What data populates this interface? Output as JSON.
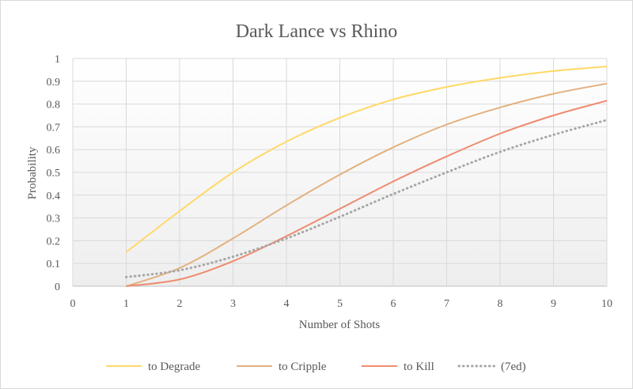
{
  "chart_data": {
    "type": "line",
    "title": "Dark Lance vs Rhino",
    "xlabel": "Number of Shots",
    "ylabel": "Probability",
    "xlim": [
      0,
      10
    ],
    "ylim": [
      0,
      1
    ],
    "x_ticks": [
      "0",
      "1",
      "2",
      "3",
      "4",
      "5",
      "6",
      "7",
      "8",
      "9",
      "10"
    ],
    "y_ticks": [
      "0",
      "0.1",
      "0.2",
      "0.3",
      "0.4",
      "0.5",
      "0.6",
      "0.7",
      "0.8",
      "0.9",
      "1"
    ],
    "grid": true,
    "legend_position": "bottom",
    "x": [
      1,
      2,
      3,
      4,
      5,
      6,
      7,
      8,
      9,
      10
    ],
    "series": [
      {
        "name": "to Degrade",
        "color": "#ffd966",
        "dash": "solid",
        "values": [
          0.15,
          0.33,
          0.5,
          0.635,
          0.74,
          0.82,
          0.875,
          0.915,
          0.945,
          0.965
        ]
      },
      {
        "name": "to Cripple",
        "color": "#e3b17e",
        "dash": "solid",
        "values": [
          0.0,
          0.08,
          0.21,
          0.355,
          0.49,
          0.61,
          0.71,
          0.785,
          0.845,
          0.89
        ]
      },
      {
        "name": "to Kill",
        "color": "#ee8b70",
        "dash": "solid",
        "values": [
          0.0,
          0.03,
          0.11,
          0.22,
          0.34,
          0.46,
          0.57,
          0.67,
          0.75,
          0.815
        ]
      },
      {
        "name": "(7ed)",
        "color": "#a6a6a6",
        "dash": "dotted",
        "values": [
          0.04,
          0.07,
          0.13,
          0.21,
          0.305,
          0.405,
          0.5,
          0.59,
          0.665,
          0.73
        ]
      }
    ]
  }
}
